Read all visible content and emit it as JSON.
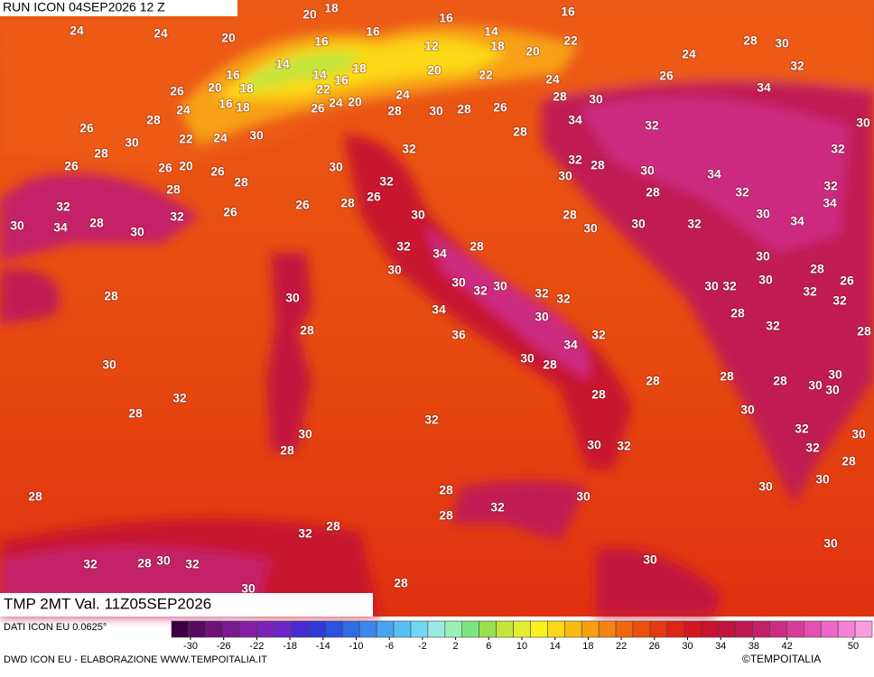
{
  "header": {
    "run": "RUN ICON 04SEP2026 12 Z",
    "field": "TMP 2MT Val. 11Z05SEP2026"
  },
  "footer": {
    "data_source": "DATI ICON EU 0.0625°",
    "credits": "DWD ICON EU - ELABORAZIONE WWW.TEMPOITALIA.IT",
    "copyright": "©TEMPOITALIA"
  },
  "legend": {
    "ticks": [
      -30,
      -26,
      -22,
      -18,
      -14,
      -10,
      -6,
      -2,
      2,
      6,
      10,
      14,
      18,
      22,
      26,
      30,
      34,
      38,
      42,
      50
    ],
    "colors": [
      "#3c0040",
      "#5a0a5e",
      "#6e127a",
      "#7a1a8e",
      "#8420a4",
      "#7c22b8",
      "#6a24c8",
      "#4a2ad0",
      "#3038d8",
      "#2c50e0",
      "#2e6ce6",
      "#3a88ec",
      "#48a4f0",
      "#58c0f4",
      "#70d8f4",
      "#9ce8e4",
      "#9af0b4",
      "#7ee680",
      "#9ce050",
      "#c4e63a",
      "#e4ec30",
      "#fcf020",
      "#fcd818",
      "#f8bc14",
      "#f8a012",
      "#f48410",
      "#f0680e",
      "#ec500e",
      "#e63810",
      "#e02414",
      "#d41620",
      "#c8122e",
      "#c4123c",
      "#c01a52",
      "#c42068",
      "#cc2c80",
      "#d83c98",
      "#e450b0",
      "#ee66c6",
      "#f680d6",
      "#fa9ce2"
    ]
  },
  "labels": [
    20,
    18,
    24,
    24,
    20,
    16,
    16,
    16,
    16,
    14,
    12,
    18,
    20,
    22,
    28,
    30,
    24,
    32,
    14,
    16,
    14,
    16,
    18,
    20,
    22,
    24,
    26,
    26,
    20,
    18,
    22,
    24,
    28,
    30,
    34,
    24,
    16,
    18,
    26,
    24,
    20,
    28,
    30,
    28,
    26,
    34,
    32,
    30,
    28,
    26,
    22,
    24,
    30,
    28,
    32,
    30,
    28,
    32,
    32,
    28,
    26,
    26,
    20,
    26,
    30,
    30,
    34,
    30,
    28,
    32,
    28,
    28,
    32,
    32,
    34,
    32,
    26,
    28,
    26,
    26,
    32,
    30,
    28,
    30,
    34,
    30,
    34,
    28,
    30,
    30,
    30,
    32,
    32,
    34,
    28,
    30,
    30,
    28,
    26,
    28,
    30,
    30,
    32,
    30,
    32,
    32,
    30,
    32,
    30,
    32,
    32,
    34,
    30,
    28,
    32,
    28,
    28,
    36,
    34,
    32,
    30,
    28,
    30,
    28,
    28,
    30,
    30,
    30,
    28,
    32,
    28,
    28,
    32,
    30,
    32,
    30,
    30,
    32,
    32,
    28,
    28,
    30,
    30,
    30,
    28,
    30,
    28,
    32,
    28,
    28,
    32,
    30,
    32,
    28,
    30,
    32,
    30,
    28,
    30
  ]
}
